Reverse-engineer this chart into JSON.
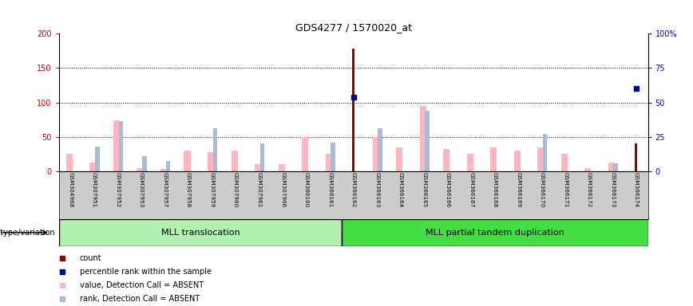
{
  "title": "GDS4277 / 1570020_at",
  "samples": [
    "GSM304968",
    "GSM307951",
    "GSM307952",
    "GSM307953",
    "GSM307957",
    "GSM307958",
    "GSM307959",
    "GSM307960",
    "GSM307961",
    "GSM307966",
    "GSM366160",
    "GSM366161",
    "GSM366162",
    "GSM366163",
    "GSM366164",
    "GSM366165",
    "GSM366166",
    "GSM366167",
    "GSM366168",
    "GSM366169",
    "GSM366170",
    "GSM366171",
    "GSM366172",
    "GSM366173",
    "GSM366174"
  ],
  "count_values": [
    0,
    0,
    0,
    0,
    0,
    0,
    0,
    0,
    0,
    0,
    0,
    0,
    178,
    0,
    0,
    0,
    0,
    0,
    0,
    0,
    0,
    0,
    0,
    0,
    40
  ],
  "percentile_values": [
    0,
    0,
    0,
    0,
    0,
    0,
    0,
    0,
    0,
    0,
    0,
    0,
    108,
    0,
    0,
    0,
    0,
    0,
    0,
    0,
    0,
    0,
    0,
    0,
    120
  ],
  "absent_value_values": [
    25,
    13,
    74,
    5,
    3,
    30,
    28,
    30,
    11,
    10,
    50,
    25,
    0,
    50,
    35,
    95,
    32,
    25,
    35,
    30,
    35,
    25,
    5,
    13,
    0
  ],
  "absent_rank_values": [
    0,
    36,
    73,
    22,
    15,
    0,
    62,
    0,
    40,
    0,
    0,
    42,
    0,
    63,
    0,
    88,
    0,
    0,
    0,
    0,
    55,
    0,
    0,
    12,
    0
  ],
  "group1_n": 12,
  "group1_label": "MLL translocation",
  "group2_label": "MLL partial tandem duplication",
  "group1_color": "#b2f0b2",
  "group2_color": "#44dd44",
  "ylim_left": [
    0,
    200
  ],
  "ylim_right": [
    0,
    100
  ],
  "yticks_left": [
    0,
    50,
    100,
    150,
    200
  ],
  "yticks_right": [
    0,
    25,
    50,
    75,
    100
  ],
  "count_color": "#990000",
  "percentile_color": "#000099",
  "absent_value_color": "#ffb6c1",
  "absent_rank_color": "#aabbd4",
  "dotted_gridlines": [
    50,
    100,
    150
  ],
  "xlabel_bg": "#cccccc",
  "genotype_label": "genotype/variation",
  "legend_items": [
    {
      "color": "#990000",
      "label": "count"
    },
    {
      "color": "#000099",
      "label": "percentile rank within the sample"
    },
    {
      "color": "#ffb6c1",
      "label": "value, Detection Call = ABSENT"
    },
    {
      "color": "#aabbd4",
      "label": "rank, Detection Call = ABSENT"
    }
  ]
}
